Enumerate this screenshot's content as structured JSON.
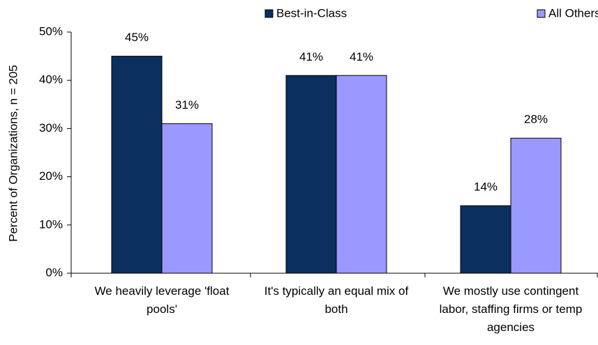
{
  "chart_data": {
    "type": "bar",
    "y_label": "Percent of Organizations, n = 205",
    "categories": [
      "We heavily leverage 'float pools'",
      "It's typically an equal mix of both",
      "We mostly use contingent labor, staffing firms or temp agencies"
    ],
    "series": [
      {
        "name": "Best-in-Class",
        "color": "#0b2f5e",
        "values": [
          45,
          41,
          14
        ],
        "value_labels": [
          "45%",
          "41%",
          "14%"
        ]
      },
      {
        "name": "All Others",
        "color": "#9999ff",
        "values": [
          31,
          41,
          28
        ],
        "value_labels": [
          "31%",
          "41%",
          "28%"
        ]
      }
    ],
    "ylim": [
      0,
      50
    ],
    "yticks": [
      {
        "value": 0,
        "label": "0%"
      },
      {
        "value": 10,
        "label": "10%"
      },
      {
        "value": 20,
        "label": "20%"
      },
      {
        "value": 30,
        "label": "30%"
      },
      {
        "value": 40,
        "label": "40%"
      },
      {
        "value": 50,
        "label": "50%"
      }
    ],
    "legend": "top"
  }
}
